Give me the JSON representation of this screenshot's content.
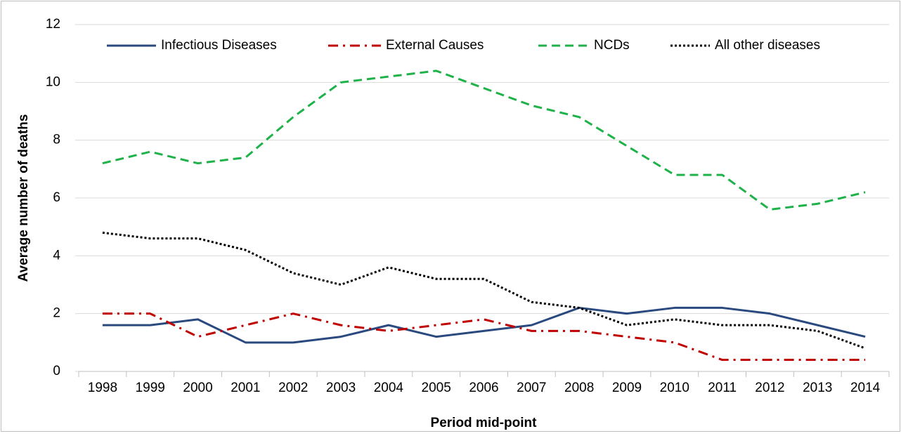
{
  "chart_data": {
    "type": "line",
    "x_label": "Period mid-point",
    "y_label": "Average number of deaths",
    "categories": [
      "1998",
      "1999",
      "2000",
      "2001",
      "2002",
      "2003",
      "2004",
      "2005",
      "2006",
      "2007",
      "2008",
      "2009",
      "2010",
      "2011",
      "2012",
      "2013",
      "2014"
    ],
    "series": [
      {
        "name": "Infectious Diseases",
        "color": "#2a4a7f",
        "style": "solid",
        "values": [
          1.6,
          1.6,
          1.8,
          1.0,
          1.0,
          1.2,
          1.6,
          1.2,
          1.4,
          1.6,
          2.2,
          2.0,
          2.2,
          2.2,
          2.0,
          1.6,
          1.2
        ]
      },
      {
        "name": "External Causes",
        "color": "#c00000",
        "style": "dashdot",
        "values": [
          2.0,
          2.0,
          1.2,
          1.6,
          2.0,
          1.6,
          1.4,
          1.6,
          1.8,
          1.4,
          1.4,
          1.2,
          1.0,
          0.4,
          0.4,
          0.4,
          0.4
        ]
      },
      {
        "name": "NCDs",
        "color": "#1fb24a",
        "style": "dashed",
        "values": [
          7.2,
          7.6,
          7.2,
          7.4,
          8.8,
          10.0,
          10.2,
          10.4,
          9.8,
          9.2,
          8.8,
          7.8,
          6.8,
          6.8,
          5.6,
          5.8,
          6.2
        ]
      },
      {
        "name": "All other diseases",
        "color": "#000000",
        "style": "dotted",
        "values": [
          4.8,
          4.6,
          4.6,
          4.2,
          3.4,
          3.0,
          3.6,
          3.2,
          3.2,
          2.4,
          2.2,
          1.6,
          1.8,
          1.6,
          1.6,
          1.4,
          0.8
        ]
      }
    ],
    "ylim": [
      0,
      12
    ],
    "yticks": [
      0,
      2,
      4,
      6,
      8,
      10,
      12
    ],
    "grid": true,
    "legend": "top"
  }
}
